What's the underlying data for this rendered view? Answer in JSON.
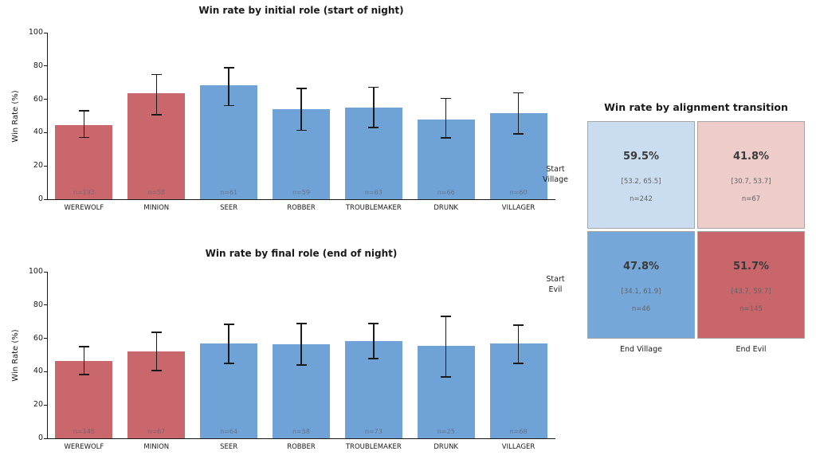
{
  "colors": {
    "red": "#c9676d",
    "blue": "#6fa3d8"
  },
  "chart_data": [
    {
      "type": "bar",
      "title": "Win rate by initial role (start of night)",
      "ylabel": "Win Rate (%)",
      "ylim": [
        0,
        100
      ],
      "yticks": [
        0,
        20,
        40,
        60,
        80,
        100
      ],
      "grid": false,
      "categories": [
        "WEREWOLF",
        "MINION",
        "SEER",
        "ROBBER",
        "TROUBLEMAKER",
        "DRUNK",
        "VILLAGER"
      ],
      "values": [
        44.5,
        63.5,
        68.5,
        54.0,
        55.2,
        47.9,
        51.6
      ],
      "err_lo": [
        37.2,
        50.7,
        56.2,
        41.5,
        43.1,
        36.9,
        39.2
      ],
      "err_hi": [
        53.1,
        75.0,
        79.0,
        66.4,
        67.3,
        60.6,
        63.9
      ],
      "n": [
        133,
        58,
        61,
        59,
        63,
        66,
        60
      ],
      "bar_colors": [
        "red",
        "red",
        "blue",
        "blue",
        "blue",
        "blue",
        "blue"
      ]
    },
    {
      "type": "bar",
      "title": "Win rate by final role (end of night)",
      "ylabel": "Win Rate (%)",
      "ylim": [
        0,
        100
      ],
      "yticks": [
        0,
        20,
        40,
        60,
        80,
        100
      ],
      "grid": false,
      "categories": [
        "WEREWOLF",
        "MINION",
        "SEER",
        "ROBBER",
        "TROUBLEMAKER",
        "DRUNK",
        "VILLAGER"
      ],
      "values": [
        46.4,
        52.2,
        56.9,
        56.5,
        58.4,
        55.5,
        56.9
      ],
      "err_lo": [
        38.3,
        40.7,
        45.0,
        44.0,
        47.8,
        36.8,
        45.0
      ],
      "err_hi": [
        55.0,
        63.6,
        68.4,
        68.9,
        68.9,
        73.2,
        67.9
      ],
      "n": [
        145,
        67,
        64,
        58,
        73,
        25,
        68
      ],
      "bar_colors": [
        "red",
        "red",
        "blue",
        "blue",
        "blue",
        "blue",
        "blue"
      ]
    },
    {
      "type": "heatmap",
      "title": "Win rate by alignment transition",
      "row_labels": [
        [
          "Start",
          "Village"
        ],
        [
          "Start",
          "Evil"
        ]
      ],
      "col_labels": [
        "End Village",
        "End Evil"
      ],
      "cells": [
        [
          {
            "pct": "59.5%",
            "ci": "[53.2, 65.5]",
            "n": "n=242",
            "color": "#c9dcf0"
          },
          {
            "pct": "41.8%",
            "ci": "[30.7, 53.7]",
            "n": "n=67",
            "color": "#eeccc9"
          }
        ],
        [
          {
            "pct": "47.8%",
            "ci": "[34.1, 61.9]",
            "n": "n=46",
            "color": "#76a7d9"
          },
          {
            "pct": "51.7%",
            "ci": "[43.7, 59.7]",
            "n": "n=145",
            "color": "#c9666c"
          }
        ]
      ]
    }
  ]
}
